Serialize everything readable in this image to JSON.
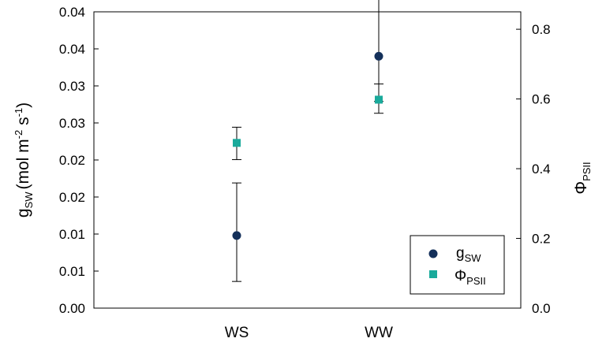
{
  "chart_data": {
    "type": "scatter",
    "categories": [
      "WS",
      "WW"
    ],
    "y_left": {
      "label_main": "g",
      "label_sub": "SW",
      "label_unit_open": "(mol m",
      "label_unit_sup1": "-2",
      "label_unit_mid": " s",
      "label_unit_sup2": "-1",
      "label_unit_close": ")",
      "ylim": [
        0,
        0.04
      ],
      "ticks": [
        0,
        0.005,
        0.01,
        0.015,
        0.02,
        0.025,
        0.03,
        0.035,
        0.04
      ],
      "tick_labels": [
        "0.00",
        "0.01",
        "0.01",
        "0.02",
        "0.02",
        "0.03",
        "0.03",
        "0.04",
        "0.04"
      ]
    },
    "y_right": {
      "label_main": "Φ",
      "label_sub": "PSII",
      "ylim": [
        0,
        0.85
      ],
      "ticks": [
        0,
        0.2,
        0.4,
        0.6,
        0.8
      ],
      "tick_labels": [
        "0.0",
        "0.2",
        "0.4",
        "0.6",
        "0.8"
      ]
    },
    "series": [
      {
        "name_main": "g",
        "name_sub": "SW",
        "axis": "left",
        "marker": "circle",
        "color": "#14305a",
        "values": [
          0.0098,
          0.034
        ],
        "err_low": [
          0.0062,
          0.0061
        ],
        "err_high": [
          0.0071,
          0.0105
        ]
      },
      {
        "name_main": "Φ",
        "name_sub": "PSII",
        "axis": "right",
        "marker": "square",
        "color": "#1aaa9b",
        "values": [
          0.474,
          0.598
        ],
        "err_low": [
          0.048,
          0.039
        ],
        "err_high": [
          0.045,
          0.045
        ]
      }
    ],
    "legend_position": "bottom-right",
    "grid": false
  }
}
